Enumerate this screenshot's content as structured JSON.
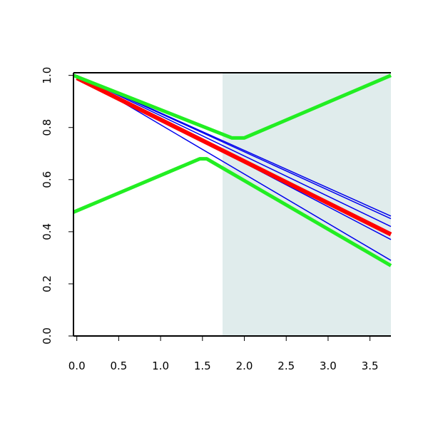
{
  "chart_data": {
    "type": "line",
    "xlim": [
      -0.04,
      3.75
    ],
    "ylim": [
      0.0,
      1.01
    ],
    "xticks": [
      {
        "value": 0,
        "label": "0.0"
      },
      {
        "value": 0.5,
        "label": "0.5"
      },
      {
        "value": 1,
        "label": "1.0"
      },
      {
        "value": 1.5,
        "label": "1.5"
      },
      {
        "value": 2,
        "label": "2.0"
      },
      {
        "value": 2.5,
        "label": "2.5"
      },
      {
        "value": 3,
        "label": "3.0"
      },
      {
        "value": 3.5,
        "label": "3.5"
      }
    ],
    "yticks": [
      {
        "value": 0,
        "label": "0.0"
      },
      {
        "value": 0.2,
        "label": "0.2"
      },
      {
        "value": 0.4,
        "label": "0.4"
      },
      {
        "value": 0.6,
        "label": "0.6"
      },
      {
        "value": 0.8,
        "label": "0.8"
      },
      {
        "value": 1,
        "label": "1.0"
      }
    ],
    "shaded_region": {
      "x": [
        1.74,
        3.75
      ],
      "color": "#e0ecec"
    },
    "series": [
      {
        "color": "#0000ee",
        "width": 1.5,
        "x": [
          0,
          3.75
        ],
        "values": [
          1.0,
          0.46
        ]
      },
      {
        "color": "#0000ee",
        "width": 1.5,
        "x": [
          0,
          3.75
        ],
        "values": [
          1.0,
          0.45
        ]
      },
      {
        "color": "#0000ee",
        "width": 1.5,
        "x": [
          0,
          3.75
        ],
        "values": [
          1.0,
          0.42
        ]
      },
      {
        "color": "#0000ee",
        "width": 1.5,
        "x": [
          0,
          3.75
        ],
        "values": [
          1.0,
          0.37
        ]
      },
      {
        "color": "#0000ee",
        "width": 1.5,
        "x": [
          0,
          3.75
        ],
        "values": [
          1.0,
          0.29
        ]
      },
      {
        "color": "#ff0000",
        "width": 6,
        "x": [
          0,
          3.75
        ],
        "values": [
          0.99,
          0.39
        ]
      },
      {
        "color": "#22ee22",
        "width": 5,
        "x": [
          -0.04,
          1.85,
          2.0,
          3.75
        ],
        "values": [
          1.0,
          0.76,
          0.76,
          1.0
        ]
      },
      {
        "color": "#22ee22",
        "width": 5,
        "x": [
          -0.04,
          1.47,
          1.55,
          3.75
        ],
        "values": [
          0.475,
          0.68,
          0.68,
          0.27
        ]
      }
    ]
  }
}
